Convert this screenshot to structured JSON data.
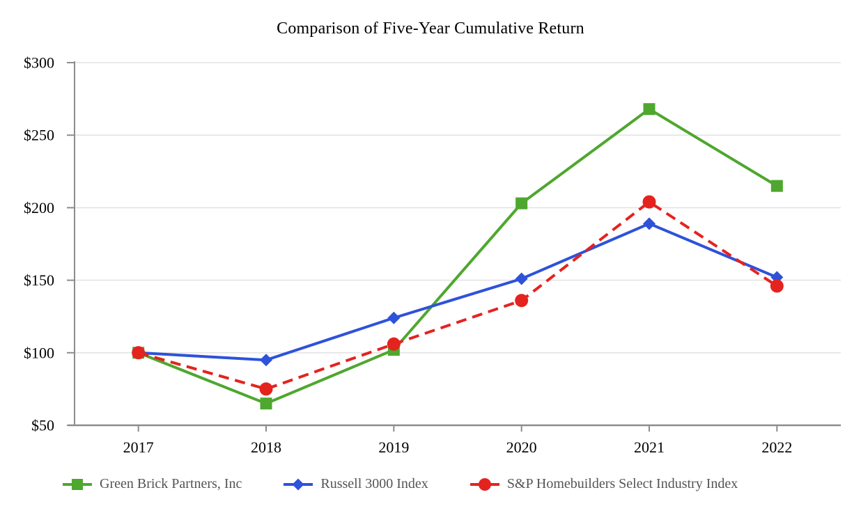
{
  "title": "Comparison of Five-Year Cumulative Return",
  "chart_data": {
    "type": "line",
    "title": "Comparison of Five-Year Cumulative Return",
    "categories": [
      "2017",
      "2018",
      "2019",
      "2020",
      "2021",
      "2022"
    ],
    "xlabel": "",
    "ylabel": "",
    "ylim": [
      50,
      300
    ],
    "y_tick_step": 50,
    "y_tick_labels": [
      "$50",
      "$100",
      "$150",
      "$200",
      "$250",
      "$300"
    ],
    "grid": "horizontal",
    "legend_position": "bottom",
    "series": [
      {
        "name": "Green Brick Partners, Inc",
        "marker": "square",
        "line_style": "solid",
        "color": "#4EA72E",
        "values": [
          100,
          65,
          102,
          203,
          268,
          215
        ]
      },
      {
        "name": "Russell 3000 Index",
        "marker": "diamond",
        "line_style": "solid",
        "color": "#2E52D9",
        "values": [
          100,
          95,
          124,
          151,
          189,
          152
        ]
      },
      {
        "name": "S&P Homebuilders Select Industry Index",
        "marker": "circle",
        "line_style": "dashed",
        "color": "#E4231F",
        "values": [
          100,
          75,
          106,
          136,
          204,
          146
        ]
      }
    ],
    "colors": {
      "grid": "#E4E4E4",
      "axis": "#8C8C8C",
      "tick_label_text": "#000000",
      "legend_text": "#545454",
      "background": "#FFFFFF"
    }
  }
}
